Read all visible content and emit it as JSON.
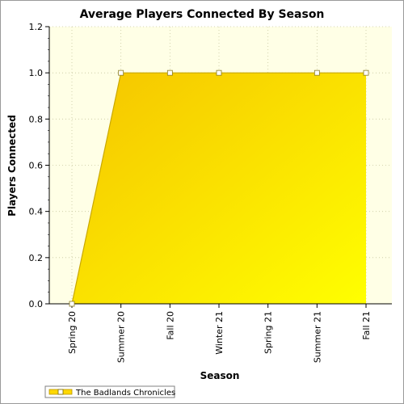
{
  "chart_data": {
    "type": "area",
    "title": "Average Players Connected By Season",
    "xlabel": "Season",
    "ylabel": "Players Connected",
    "categories": [
      "Spring 20",
      "Summer 20",
      "Fall 20",
      "Winter 21",
      "Spring 21",
      "Summer 21",
      "Fall 21"
    ],
    "series": [
      {
        "name": "The Badlands Chronicles",
        "values": [
          0.0,
          1.0,
          1.0,
          1.0,
          null,
          1.0,
          1.0
        ],
        "color": "#ffd800"
      }
    ],
    "ylim": [
      0,
      1.2
    ],
    "yticks": [
      "0.0",
      "0.2",
      "0.4",
      "0.6",
      "0.8",
      "1.0",
      "1.2"
    ],
    "grid": true,
    "legend": "bottom-left",
    "plot_background": "#ffffe6"
  }
}
